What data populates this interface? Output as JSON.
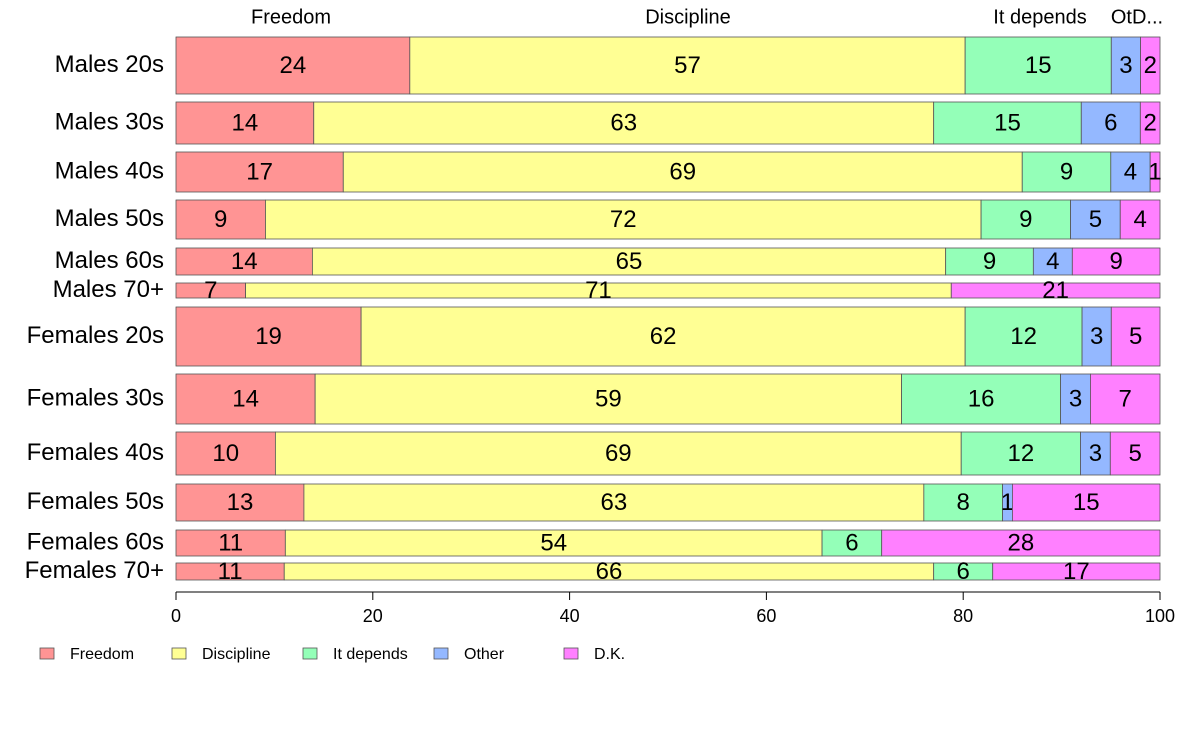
{
  "chart_data": {
    "type": "bar",
    "orientation": "horizontal",
    "stacked": true,
    "normalized": true,
    "variable_width": true,
    "categories": [
      "Males 20s",
      "Males 30s",
      "Males 40s",
      "Males 50s",
      "Males 60s",
      "Males 70+",
      "Females 20s",
      "Females 30s",
      "Females 40s",
      "Females 50s",
      "Females 60s",
      "Females 70+"
    ],
    "series": [
      {
        "name": "Freedom",
        "color": "#FF9494",
        "values": [
          24,
          14,
          17,
          9,
          14,
          7,
          19,
          14,
          10,
          13,
          11,
          11
        ]
      },
      {
        "name": "Discipline",
        "color": "#FFFF94",
        "values": [
          57,
          63,
          69,
          72,
          65,
          71,
          62,
          59,
          69,
          63,
          54,
          66
        ]
      },
      {
        "name": "It depends",
        "color": "#94FFB8",
        "values": [
          15,
          15,
          9,
          9,
          9,
          0,
          12,
          16,
          12,
          8,
          6,
          6
        ]
      },
      {
        "name": "Other",
        "color": "#94B8FF",
        "values": [
          3,
          6,
          4,
          5,
          4,
          0,
          3,
          3,
          3,
          1,
          0,
          0
        ]
      },
      {
        "name": "D.K.",
        "color": "#FF80FF",
        "values": [
          2,
          2,
          1,
          4,
          9,
          21,
          5,
          7,
          5,
          15,
          28,
          17
        ]
      }
    ],
    "column_labels": [
      "Freedom",
      "Discipline",
      "It depends",
      "OtD..."
    ],
    "xlim": [
      0,
      100
    ],
    "xticks": [
      "0",
      "20",
      "40",
      "60",
      "80",
      "100"
    ],
    "legend": [
      "Freedom",
      "Discipline",
      "It depends",
      "Other",
      "D.K."
    ],
    "legend_position": "bottom",
    "grid": false
  }
}
